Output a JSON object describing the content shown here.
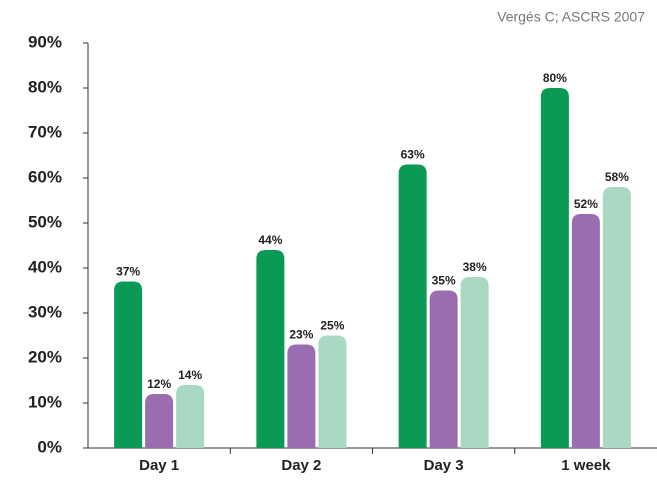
{
  "chart_data": {
    "type": "bar",
    "subtitle": "Vergés C;  ASCRS 2007",
    "categories": [
      "Day 1",
      "Day 2",
      "Day 3",
      "1 week"
    ],
    "series": [
      {
        "color": "#0b9a56",
        "values": [
          37,
          44,
          63,
          80
        ],
        "value_labels": [
          "37%",
          "44%",
          "63%",
          "80%"
        ]
      },
      {
        "color": "#9a6db0",
        "values": [
          12,
          23,
          35,
          52
        ],
        "value_labels": [
          "12%",
          "23%",
          "35%",
          "52%"
        ]
      },
      {
        "color": "#a9d9c3",
        "values": [
          14,
          25,
          38,
          58
        ],
        "value_labels": [
          "14%",
          "25%",
          "38%",
          "58%"
        ]
      }
    ],
    "ylim": [
      0,
      90
    ],
    "yticks": [
      {
        "value": 0,
        "label": "0%"
      },
      {
        "value": 10,
        "label": "10%"
      },
      {
        "value": 20,
        "label": "20%"
      },
      {
        "value": 30,
        "label": "30%"
      },
      {
        "value": 40,
        "label": "40%"
      },
      {
        "value": 50,
        "label": "50%"
      },
      {
        "value": 60,
        "label": "60%"
      },
      {
        "value": 70,
        "label": "70%"
      },
      {
        "value": 80,
        "label": "80%"
      },
      {
        "value": 90,
        "label": "90%"
      }
    ]
  }
}
